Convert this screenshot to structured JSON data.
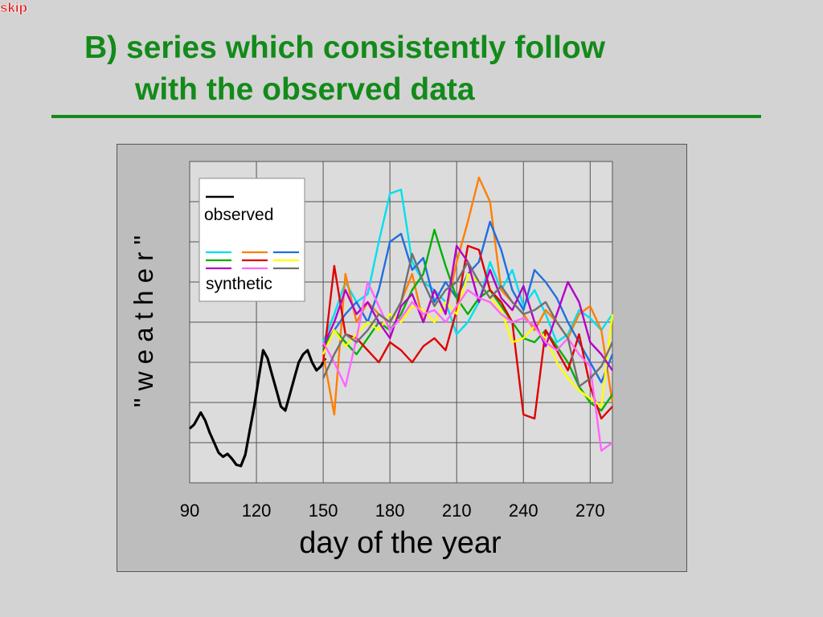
{
  "skip_link": "skip",
  "title": {
    "line1": "B) series which consistently follow",
    "line2": "with the observed data"
  },
  "colors": {
    "title": "#138a1a",
    "slide_bg": "#d3d3d3",
    "plot_bg": "#dcdcdc",
    "frame_bg": "#bdbdbd"
  },
  "chart_data": {
    "type": "line",
    "xlabel": "day of the year",
    "ylabel": "\" w e a t h e r \"",
    "xlim": [
      90,
      280
    ],
    "ylim": [
      0,
      8
    ],
    "xticks": [
      90,
      120,
      150,
      180,
      210,
      240,
      270
    ],
    "grid": true,
    "legend": {
      "position": "top-left",
      "observed_label": "observed",
      "synthetic_label": "synthetic"
    },
    "series": [
      {
        "kind": "observed",
        "color": "#000000",
        "x": [
          90,
          92,
          95,
          97,
          99,
          101,
          103,
          105,
          107,
          109,
          111,
          113,
          115,
          117,
          119,
          121,
          123,
          125,
          127,
          129,
          131,
          133,
          135,
          137,
          139,
          141,
          143,
          145,
          147,
          149,
          151
        ],
        "y": [
          1.35,
          1.45,
          1.75,
          1.55,
          1.25,
          1.0,
          0.75,
          0.65,
          0.72,
          0.6,
          0.45,
          0.42,
          0.7,
          1.3,
          1.9,
          2.6,
          3.3,
          3.1,
          2.7,
          2.3,
          1.9,
          1.8,
          2.2,
          2.6,
          3.0,
          3.2,
          3.3,
          3.0,
          2.8,
          2.9,
          3.1
        ]
      },
      {
        "kind": "synthetic",
        "color": "#00e0ef",
        "x": [
          150,
          155,
          160,
          165,
          170,
          175,
          180,
          185,
          190,
          195,
          200,
          205,
          210,
          215,
          220,
          225,
          230,
          235,
          240,
          245,
          250,
          255,
          260,
          265,
          270,
          275,
          280
        ],
        "y": [
          3.5,
          4.2,
          5.0,
          4.5,
          4.7,
          6.0,
          7.2,
          7.3,
          5.5,
          5.0,
          4.8,
          4.5,
          3.7,
          4.0,
          4.5,
          5.5,
          4.8,
          5.3,
          4.4,
          4.8,
          4.2,
          3.5,
          3.7,
          4.3,
          4.1,
          3.8,
          4.2
        ]
      },
      {
        "kind": "synthetic",
        "color": "#ff7f00",
        "x": [
          150,
          155,
          160,
          165,
          170,
          175,
          180,
          185,
          190,
          195,
          200,
          205,
          210,
          215,
          220,
          225,
          230,
          235,
          240,
          245,
          250,
          255,
          260,
          265,
          270,
          275,
          280
        ],
        "y": [
          3.2,
          1.7,
          5.2,
          4.0,
          4.5,
          4.2,
          4.0,
          4.5,
          5.2,
          4.0,
          4.8,
          4.2,
          5.5,
          6.5,
          7.6,
          7.0,
          4.8,
          4.5,
          4.2,
          3.8,
          4.3,
          4.0,
          3.6,
          4.2,
          4.4,
          3.8,
          2.0
        ]
      },
      {
        "kind": "synthetic",
        "color": "#1f6fe0",
        "x": [
          150,
          155,
          160,
          165,
          170,
          175,
          180,
          185,
          190,
          195,
          200,
          205,
          210,
          215,
          220,
          225,
          230,
          235,
          240,
          245,
          250,
          255,
          260,
          265,
          270,
          275,
          280
        ],
        "y": [
          3.4,
          3.8,
          4.2,
          4.5,
          4.0,
          4.8,
          6.0,
          6.2,
          5.3,
          5.6,
          4.5,
          5.0,
          4.6,
          5.2,
          5.5,
          6.5,
          5.8,
          4.8,
          4.3,
          5.3,
          5.0,
          4.6,
          4.0,
          3.5,
          3.0,
          2.5,
          3.2
        ]
      },
      {
        "kind": "synthetic",
        "color": "#00b000",
        "x": [
          150,
          155,
          160,
          165,
          170,
          175,
          180,
          185,
          190,
          195,
          200,
          205,
          210,
          215,
          220,
          225,
          230,
          235,
          240,
          245,
          250,
          255,
          260,
          265,
          270,
          275,
          280
        ],
        "y": [
          3.3,
          3.8,
          3.5,
          3.2,
          3.6,
          4.0,
          3.8,
          4.2,
          4.8,
          5.2,
          6.3,
          5.4,
          4.6,
          4.2,
          4.6,
          4.8,
          4.4,
          4.0,
          3.6,
          3.5,
          3.8,
          3.4,
          3.0,
          2.4,
          2.0,
          1.8,
          2.2
        ]
      },
      {
        "kind": "synthetic",
        "color": "#e00000",
        "x": [
          150,
          155,
          160,
          165,
          170,
          175,
          180,
          185,
          190,
          195,
          200,
          205,
          210,
          215,
          220,
          225,
          230,
          235,
          240,
          245,
          250,
          255,
          260,
          265,
          270,
          275,
          280
        ],
        "y": [
          3.0,
          5.4,
          3.7,
          3.6,
          3.3,
          3.0,
          3.5,
          3.3,
          3.0,
          3.4,
          3.6,
          3.3,
          4.3,
          5.9,
          5.8,
          4.8,
          4.5,
          4.0,
          1.7,
          1.6,
          3.8,
          3.3,
          2.8,
          3.7,
          2.4,
          1.6,
          1.9
        ]
      },
      {
        "kind": "synthetic",
        "color": "#ffff00",
        "x": [
          150,
          155,
          160,
          165,
          170,
          175,
          180,
          185,
          190,
          195,
          200,
          205,
          210,
          215,
          220,
          225,
          230,
          235,
          240,
          245,
          250,
          255,
          260,
          265,
          270,
          275,
          280
        ],
        "y": [
          3.2,
          3.8,
          3.4,
          3.7,
          4.0,
          3.8,
          4.2,
          4.0,
          4.4,
          4.3,
          4.0,
          4.5,
          4.2,
          5.2,
          5.0,
          4.6,
          4.3,
          3.5,
          3.6,
          3.9,
          3.6,
          3.0,
          2.6,
          2.3,
          2.1,
          1.9,
          4.2
        ]
      },
      {
        "kind": "synthetic",
        "color": "#b400c8",
        "x": [
          150,
          155,
          160,
          165,
          170,
          175,
          180,
          185,
          190,
          195,
          200,
          205,
          210,
          215,
          220,
          225,
          230,
          235,
          240,
          245,
          250,
          255,
          260,
          265,
          270,
          275,
          280
        ],
        "y": [
          3.4,
          4.0,
          4.8,
          4.2,
          4.5,
          4.0,
          3.6,
          4.4,
          4.7,
          4.0,
          4.8,
          4.2,
          5.9,
          5.5,
          4.5,
          5.3,
          4.6,
          4.3,
          4.9,
          4.0,
          3.4,
          4.2,
          5.0,
          4.5,
          3.5,
          3.2,
          2.8
        ]
      },
      {
        "kind": "synthetic",
        "color": "#ff66ff",
        "x": [
          150,
          155,
          160,
          165,
          170,
          175,
          180,
          185,
          190,
          195,
          200,
          205,
          210,
          215,
          220,
          225,
          230,
          235,
          240,
          245,
          250,
          255,
          260,
          265,
          270,
          275,
          280
        ],
        "y": [
          3.5,
          3.0,
          2.4,
          3.6,
          5.0,
          4.4,
          3.8,
          4.1,
          4.5,
          4.2,
          4.3,
          4.0,
          4.4,
          4.8,
          4.6,
          4.5,
          4.2,
          4.0,
          4.1,
          3.9,
          3.5,
          3.3,
          3.6,
          3.2,
          2.9,
          0.8,
          1.0
        ]
      },
      {
        "kind": "synthetic",
        "color": "#707070",
        "x": [
          150,
          155,
          160,
          165,
          170,
          175,
          180,
          185,
          190,
          195,
          200,
          205,
          210,
          215,
          220,
          225,
          230,
          235,
          240,
          245,
          250,
          255,
          260,
          265,
          270,
          275,
          280
        ],
        "y": [
          2.6,
          3.2,
          3.7,
          3.5,
          3.8,
          4.2,
          4.0,
          4.5,
          5.7,
          5.0,
          4.4,
          4.8,
          5.0,
          5.5,
          5.0,
          4.6,
          4.9,
          4.5,
          4.2,
          4.3,
          4.5,
          4.0,
          3.6,
          2.4,
          2.6,
          2.9,
          3.5
        ]
      }
    ]
  }
}
